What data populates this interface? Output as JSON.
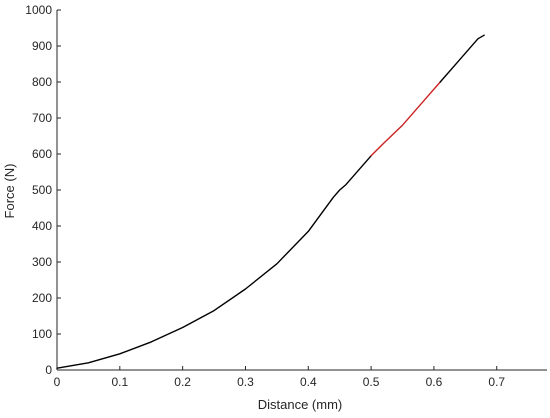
{
  "chart_data": {
    "type": "line",
    "title": "",
    "xlabel": "Distance (mm)",
    "ylabel": "Force (N)",
    "xlim": [
      0,
      0.78
    ],
    "ylim": [
      0,
      1000
    ],
    "xticks": [
      0,
      0.1,
      0.2,
      0.3,
      0.4,
      0.5,
      0.6,
      0.7
    ],
    "xtick_labels": [
      "0",
      "0.1",
      "0.2",
      "0.3",
      "0.4",
      "0.5",
      "0.6",
      "0.7"
    ],
    "yticks": [
      0,
      100,
      200,
      300,
      400,
      500,
      600,
      700,
      800,
      900,
      1000
    ],
    "ytick_labels": [
      "0",
      "100",
      "200",
      "300",
      "400",
      "500",
      "600",
      "700",
      "800",
      "900",
      "1000"
    ],
    "grid": false,
    "series": [
      {
        "color": "#000000",
        "x": [
          0,
          0.05,
          0.1,
          0.15,
          0.2,
          0.25,
          0.3,
          0.35,
          0.4,
          0.44,
          0.45,
          0.46,
          0.5
        ],
        "y": [
          5,
          20,
          45,
          78,
          118,
          165,
          225,
          295,
          385,
          480,
          500,
          515,
          595
        ]
      },
      {
        "color": "#cc2222",
        "x": [
          0.5,
          0.52,
          0.55,
          0.58,
          0.61
        ],
        "y": [
          595,
          630,
          680,
          740,
          800
        ]
      },
      {
        "color": "#000000",
        "x": [
          0.61,
          0.64,
          0.67,
          0.68
        ],
        "y": [
          800,
          860,
          920,
          930
        ]
      }
    ]
  }
}
